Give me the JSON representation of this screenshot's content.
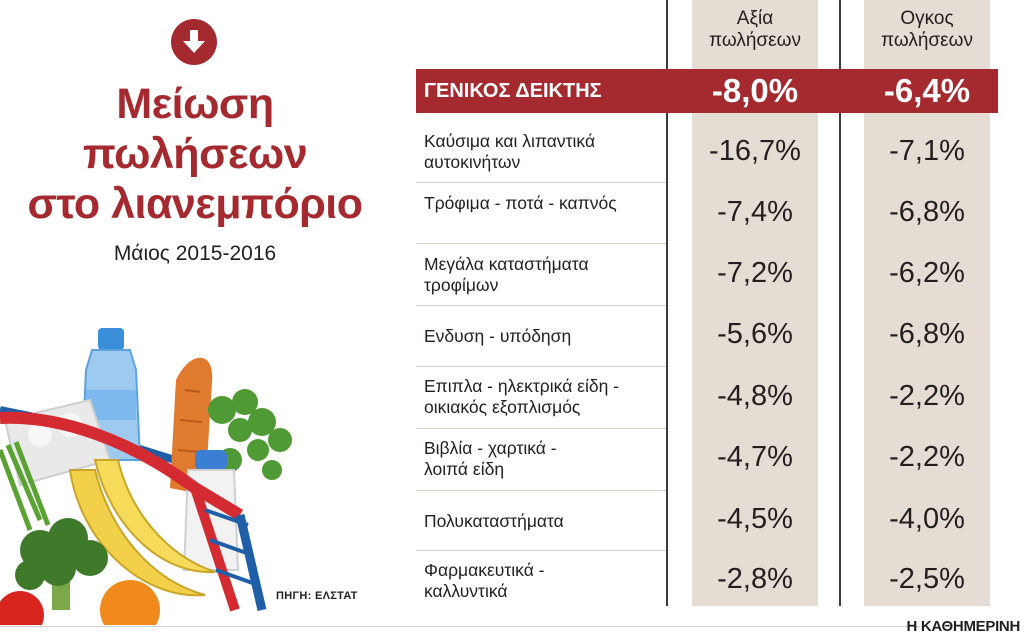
{
  "title_lines": [
    "Μείωση",
    "πωλήσεων",
    "στο λιανεμπόριο"
  ],
  "subtitle": "Μάιος 2015-2016",
  "source": "ΠΗΓΗ: ΕΛΣΤΑΤ",
  "brand": "Η ΚΑΘΗΜΕΡΙΝΗ",
  "colors": {
    "accent": "#a52a2f",
    "column_bg": "#e5ddd4",
    "text": "#231f20"
  },
  "icons": {
    "header": "down-arrow-circle-icon",
    "illustration": "grocery-basket-icon"
  },
  "chart_data": {
    "type": "table",
    "columns": [
      "Αξία πωλήσεων",
      "Ογκος πωλήσεων"
    ],
    "header_row": {
      "label": "ΓΕΝΙΚΟΣ ΔΕΙΚΤΗΣ",
      "values": [
        "-8,0%",
        "-6,4%"
      ]
    },
    "rows": [
      {
        "label": "Καύσιμα και λιπαντικά αυτοκινήτων",
        "values": [
          "-16,7%",
          "-7,1%"
        ]
      },
      {
        "label": "Τρόφιμα - ποτά - καπνός",
        "values": [
          "-7,4%",
          "-6,8%"
        ]
      },
      {
        "label": "Μεγάλα καταστήματα τροφίμων",
        "values": [
          "-7,2%",
          "-6,2%"
        ]
      },
      {
        "label": "Ενδυση - υπόδηση",
        "values": [
          "-5,6%",
          "-6,8%"
        ]
      },
      {
        "label": "Επιπλα - ηλεκτρικά είδη - οικιακός εξοπλισμός",
        "values": [
          "-4,8%",
          "-2,2%"
        ]
      },
      {
        "label": "Βιβλία - χαρτικά - λοιπά είδη",
        "values": [
          "-4,7%",
          "-2,2%"
        ]
      },
      {
        "label": "Πολυκαταστήματα",
        "values": [
          "-4,5%",
          "-4,0%"
        ]
      },
      {
        "label": "Φαρμακευτικά - καλλυντικά",
        "values": [
          "-2,8%",
          "-2,5%"
        ]
      }
    ]
  }
}
